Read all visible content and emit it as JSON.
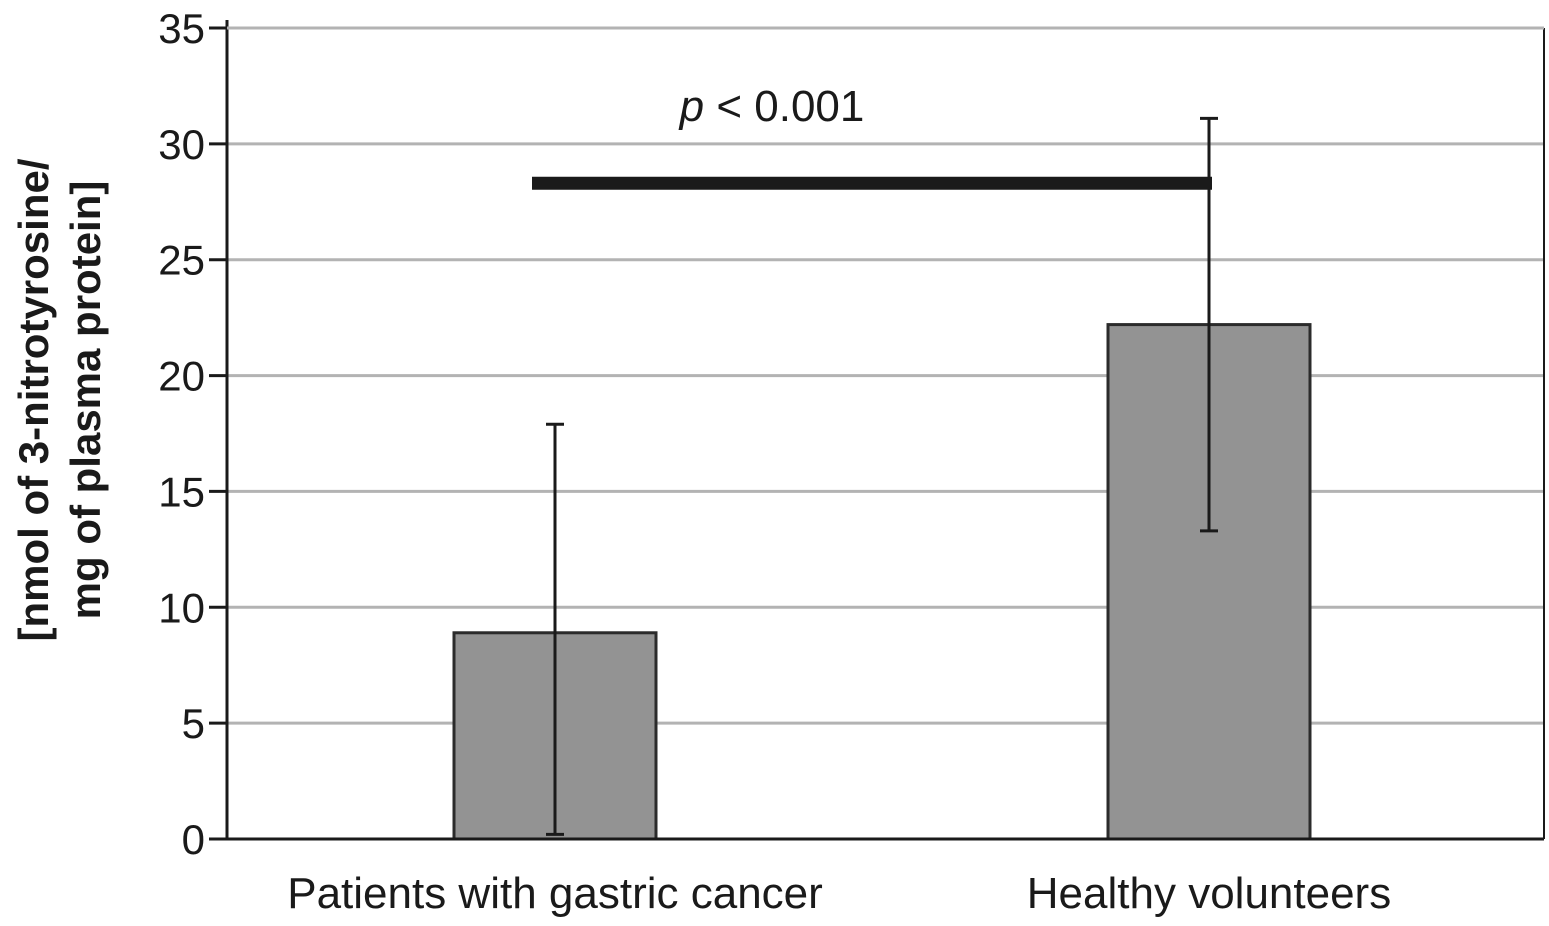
{
  "chart_data": {
    "type": "bar",
    "categories": [
      "Patients with gastric cancer",
      "Healthy volunteers"
    ],
    "values": [
      8.9,
      22.2
    ],
    "error_bars": [
      {
        "low": 0.2,
        "high": 17.9
      },
      {
        "low": 13.3,
        "high": 31.1
      }
    ],
    "ylabel_lines": [
      "[nmol of 3-nitrotyrosine/",
      "mg of plasma protein]"
    ],
    "ylim": [
      0,
      35
    ],
    "yticks": [
      0,
      5,
      10,
      15,
      20,
      25,
      30,
      35
    ],
    "grid": true,
    "colors": {
      "bar_fill": "#939393",
      "bar_stroke": "#2b2b2b",
      "grid": "#b3b3b3",
      "axis": "#1a1a1a",
      "significance_bar": "#1a1a1a"
    },
    "annotation": {
      "p_symbol": "p",
      "p_rest": " < 0.001",
      "significance_level": 28.3
    }
  }
}
